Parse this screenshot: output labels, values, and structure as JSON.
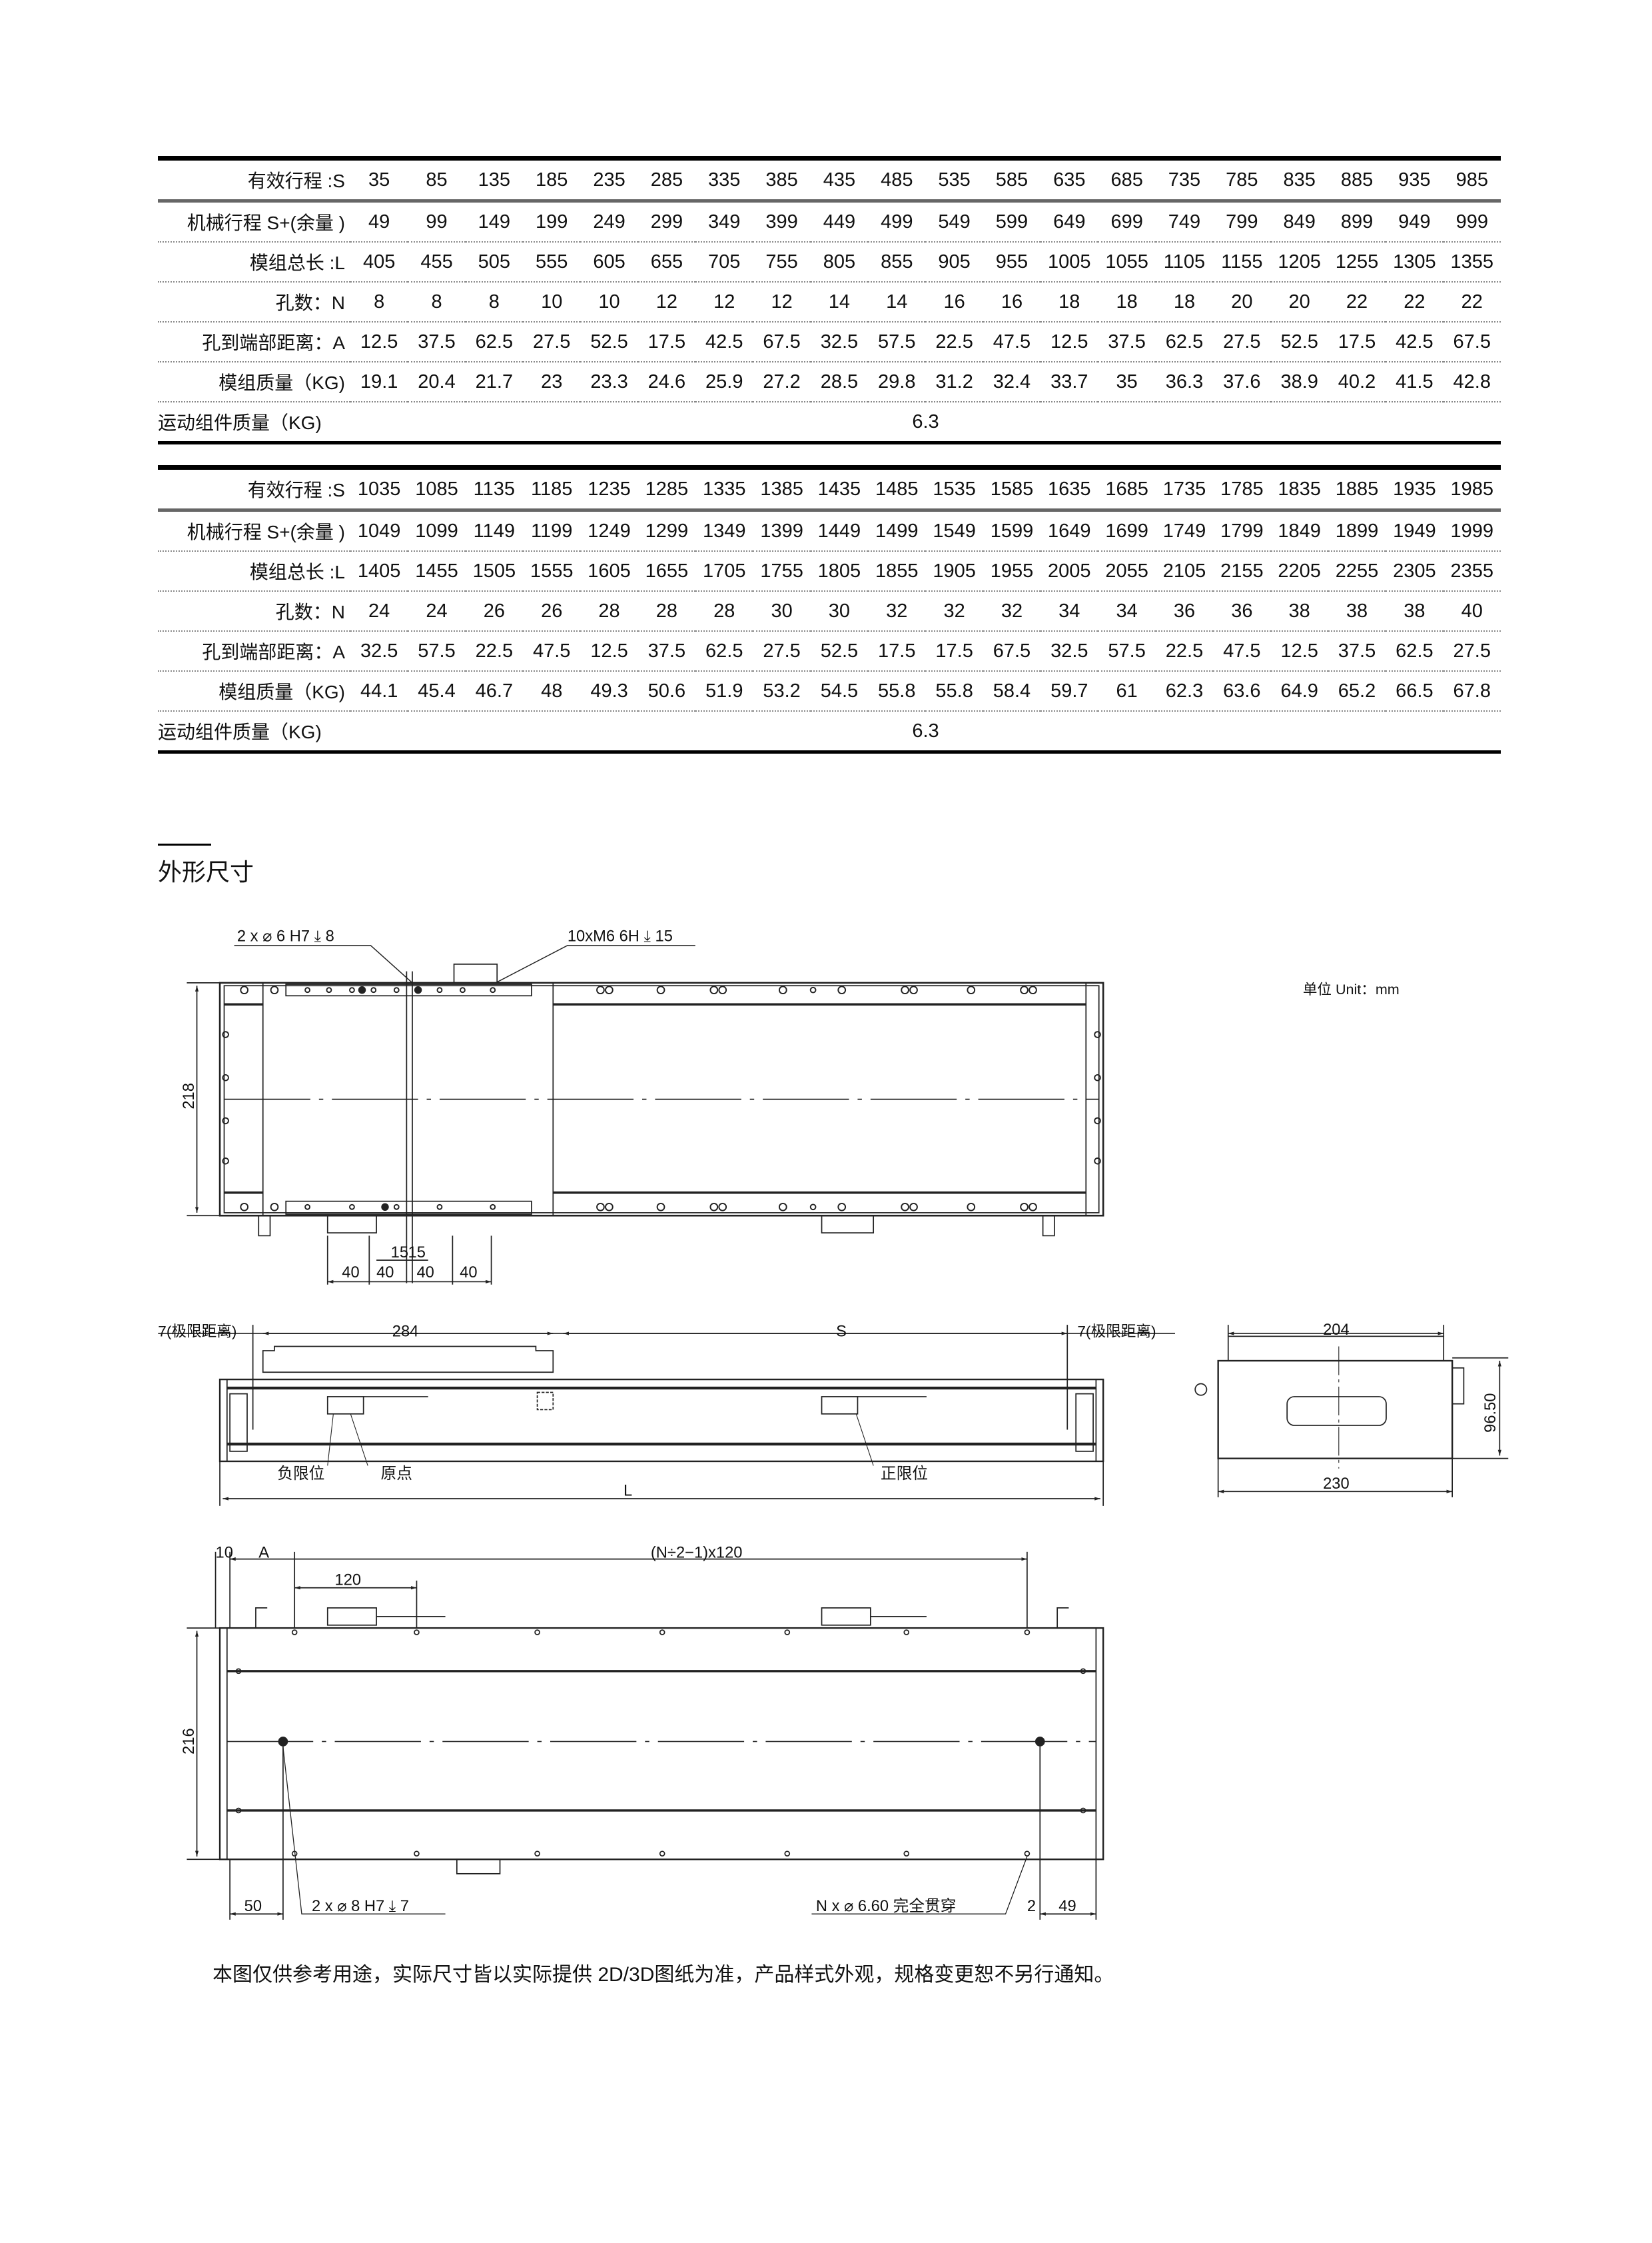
{
  "table1": {
    "rows": [
      {
        "label": "有效行程 :S",
        "values": [
          "35",
          "85",
          "135",
          "185",
          "235",
          "285",
          "335",
          "385",
          "435",
          "485",
          "535",
          "585",
          "635",
          "685",
          "735",
          "785",
          "835",
          "885",
          "935",
          "985"
        ]
      },
      {
        "label": "机械行程 S+(余量 )",
        "values": [
          "49",
          "99",
          "149",
          "199",
          "249",
          "299",
          "349",
          "399",
          "449",
          "499",
          "549",
          "599",
          "649",
          "699",
          "749",
          "799",
          "849",
          "899",
          "949",
          "999"
        ]
      },
      {
        "label": "模组总长 :L",
        "values": [
          "405",
          "455",
          "505",
          "555",
          "605",
          "655",
          "705",
          "755",
          "805",
          "855",
          "905",
          "955",
          "1005",
          "1055",
          "1105",
          "1155",
          "1205",
          "1255",
          "1305",
          "1355"
        ]
      },
      {
        "label": "孔数：N",
        "values": [
          "8",
          "8",
          "8",
          "10",
          "10",
          "12",
          "12",
          "12",
          "14",
          "14",
          "16",
          "16",
          "18",
          "18",
          "18",
          "20",
          "20",
          "22",
          "22",
          "22"
        ]
      },
      {
        "label": "孔到端部距离：A",
        "values": [
          "12.5",
          "37.5",
          "62.5",
          "27.5",
          "52.5",
          "17.5",
          "42.5",
          "67.5",
          "32.5",
          "57.5",
          "22.5",
          "47.5",
          "12.5",
          "37.5",
          "62.5",
          "27.5",
          "52.5",
          "17.5",
          "42.5",
          "67.5"
        ]
      },
      {
        "label": "模组质量（KG)",
        "values": [
          "19.1",
          "20.4",
          "21.7",
          "23",
          "23.3",
          "24.6",
          "25.9",
          "27.2",
          "28.5",
          "29.8",
          "31.2",
          "32.4",
          "33.7",
          "35",
          "36.3",
          "37.6",
          "38.9",
          "40.2",
          "41.5",
          "42.8"
        ]
      }
    ],
    "moving_mass": {
      "label": "运动组件质量（KG)",
      "value": "6.3"
    }
  },
  "table2": {
    "rows": [
      {
        "label": "有效行程 :S",
        "values": [
          "1035",
          "1085",
          "1135",
          "1185",
          "1235",
          "1285",
          "1335",
          "1385",
          "1435",
          "1485",
          "1535",
          "1585",
          "1635",
          "1685",
          "1735",
          "1785",
          "1835",
          "1885",
          "1935",
          "1985"
        ]
      },
      {
        "label": "机械行程 S+(余量 )",
        "values": [
          "1049",
          "1099",
          "1149",
          "1199",
          "1249",
          "1299",
          "1349",
          "1399",
          "1449",
          "1499",
          "1549",
          "1599",
          "1649",
          "1699",
          "1749",
          "1799",
          "1849",
          "1899",
          "1949",
          "1999"
        ]
      },
      {
        "label": "模组总长 :L",
        "values": [
          "1405",
          "1455",
          "1505",
          "1555",
          "1605",
          "1655",
          "1705",
          "1755",
          "1805",
          "1855",
          "1905",
          "1955",
          "2005",
          "2055",
          "2105",
          "2155",
          "2205",
          "2255",
          "2305",
          "2355"
        ]
      },
      {
        "label": "孔数：N",
        "values": [
          "24",
          "24",
          "26",
          "26",
          "28",
          "28",
          "28",
          "30",
          "30",
          "32",
          "32",
          "32",
          "34",
          "34",
          "36",
          "36",
          "38",
          "38",
          "38",
          "40"
        ]
      },
      {
        "label": "孔到端部距离：A",
        "values": [
          "32.5",
          "57.5",
          "22.5",
          "47.5",
          "12.5",
          "37.5",
          "62.5",
          "27.5",
          "52.5",
          "17.5",
          "17.5",
          "67.5",
          "32.5",
          "57.5",
          "22.5",
          "47.5",
          "12.5",
          "37.5",
          "62.5",
          "27.5"
        ]
      },
      {
        "label": "模组质量（KG)",
        "values": [
          "44.1",
          "45.4",
          "46.7",
          "48",
          "49.3",
          "50.6",
          "51.9",
          "53.2",
          "54.5",
          "55.8",
          "55.8",
          "58.4",
          "59.7",
          "61",
          "62.3",
          "63.6",
          "64.9",
          "65.2",
          "66.5",
          "67.8"
        ]
      }
    ],
    "moving_mass": {
      "label": "运动组件质量（KG)",
      "value": "6.3"
    }
  },
  "section_title": "外形尺寸",
  "drawing": {
    "top_view": {
      "pin_hole_callout": "2 x  ⌀ 6 H7 ⤓ 8",
      "thread_callout": "10xM6 6H ⤓ 15",
      "unit": "单位 Unit：mm",
      "height_dim": "218",
      "dim_15a": "15",
      "dim_15b": "15",
      "dims_40": [
        "40",
        "40",
        "40",
        "40"
      ]
    },
    "side_view": {
      "limit_left": "7(极限距离)",
      "carriage_len": "284",
      "stroke": "S",
      "limit_right": "7(极限距离)",
      "neg_limit": "负限位",
      "origin": "原点",
      "pos_limit": "正限位",
      "length": "L"
    },
    "end_view": {
      "top_width": "204",
      "bottom_width": "230",
      "height": "96.50"
    },
    "bottom_view": {
      "dim_10": "10",
      "dim_a": "A",
      "pitch": "(N÷2−1)x120",
      "dim_120": "120",
      "height_dim": "216",
      "dim_50": "50",
      "pin_callout": "2 x  ⌀ 8 H7 ⤓ 7",
      "through_callout": "N x  ⌀ 6.60 完全贯穿",
      "dim_2": "2",
      "dim_49": "49"
    }
  },
  "footnote": "本图仅供参考用途，实际尺寸皆以实际提供 2D/3D图纸为准，产品样式外观，规格变更恕不另行通知。"
}
